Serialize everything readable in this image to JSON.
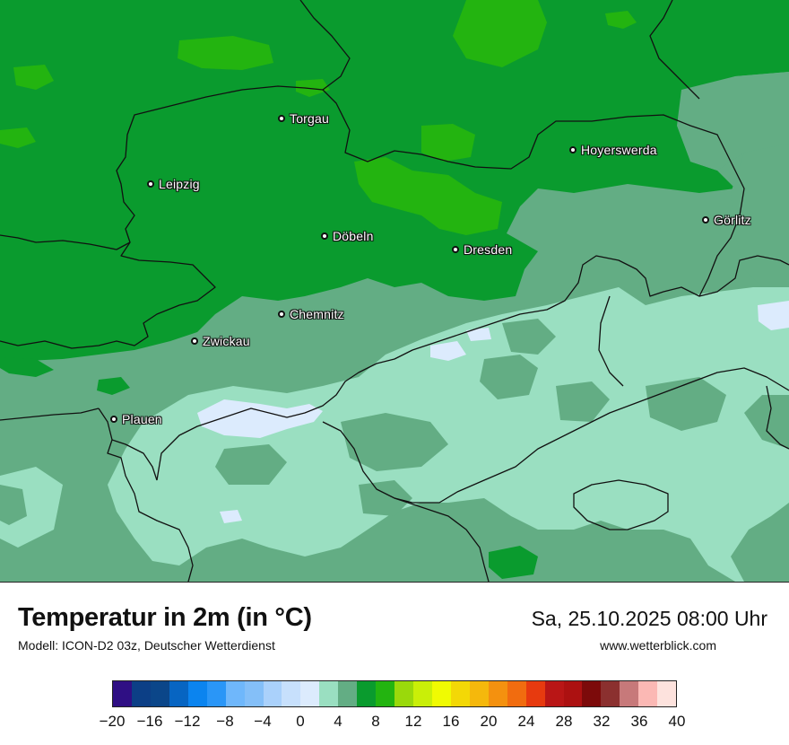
{
  "title": "Temperatur in 2m (in °C)",
  "model": "Modell: ICON-D2 03z, Deutscher Wetterdienst",
  "datetime": "Sa, 25.10.2025 08:00 Uhr",
  "website": "www.wetterblick.com",
  "cities": [
    {
      "name": "Torgau"
    },
    {
      "name": "Leipzig"
    },
    {
      "name": "Hoyerswerda"
    },
    {
      "name": "Görlitz"
    },
    {
      "name": "Döbeln"
    },
    {
      "name": "Dresden"
    },
    {
      "name": "Chemnitz"
    },
    {
      "name": "Zwickau"
    },
    {
      "name": "Plauen"
    }
  ],
  "legend": {
    "colors": [
      "#2f0f84",
      "#0c3f86",
      "#0b4689",
      "#0765c2",
      "#0b84ef",
      "#2a96f7",
      "#6fb7fb",
      "#84bff8",
      "#aad1fb",
      "#c7e0fc",
      "#dcebfd",
      "#9adfc1",
      "#63ad84",
      "#0a9b2e",
      "#23b410",
      "#9ad90b",
      "#c9ef08",
      "#f0fb02",
      "#f3d806",
      "#f5b80c",
      "#f4910f",
      "#f16c0f",
      "#e73a0f",
      "#b91616",
      "#ac1111",
      "#7c0a0a",
      "#8b302f",
      "#c7797a",
      "#fbb8b4",
      "#fde2dd"
    ],
    "ticks": [
      "−20",
      "−16",
      "−12",
      "−8",
      "−4",
      "0",
      "4",
      "8",
      "12",
      "16",
      "20",
      "24",
      "28",
      "32",
      "36",
      "40"
    ]
  },
  "colors": {
    "band_4_6": "#63ad84",
    "band_6_8": "#0a9b2e",
    "band_8_10": "#23b410",
    "band_2_4": "#9adfc1",
    "band_0_2": "#dcebfd"
  }
}
